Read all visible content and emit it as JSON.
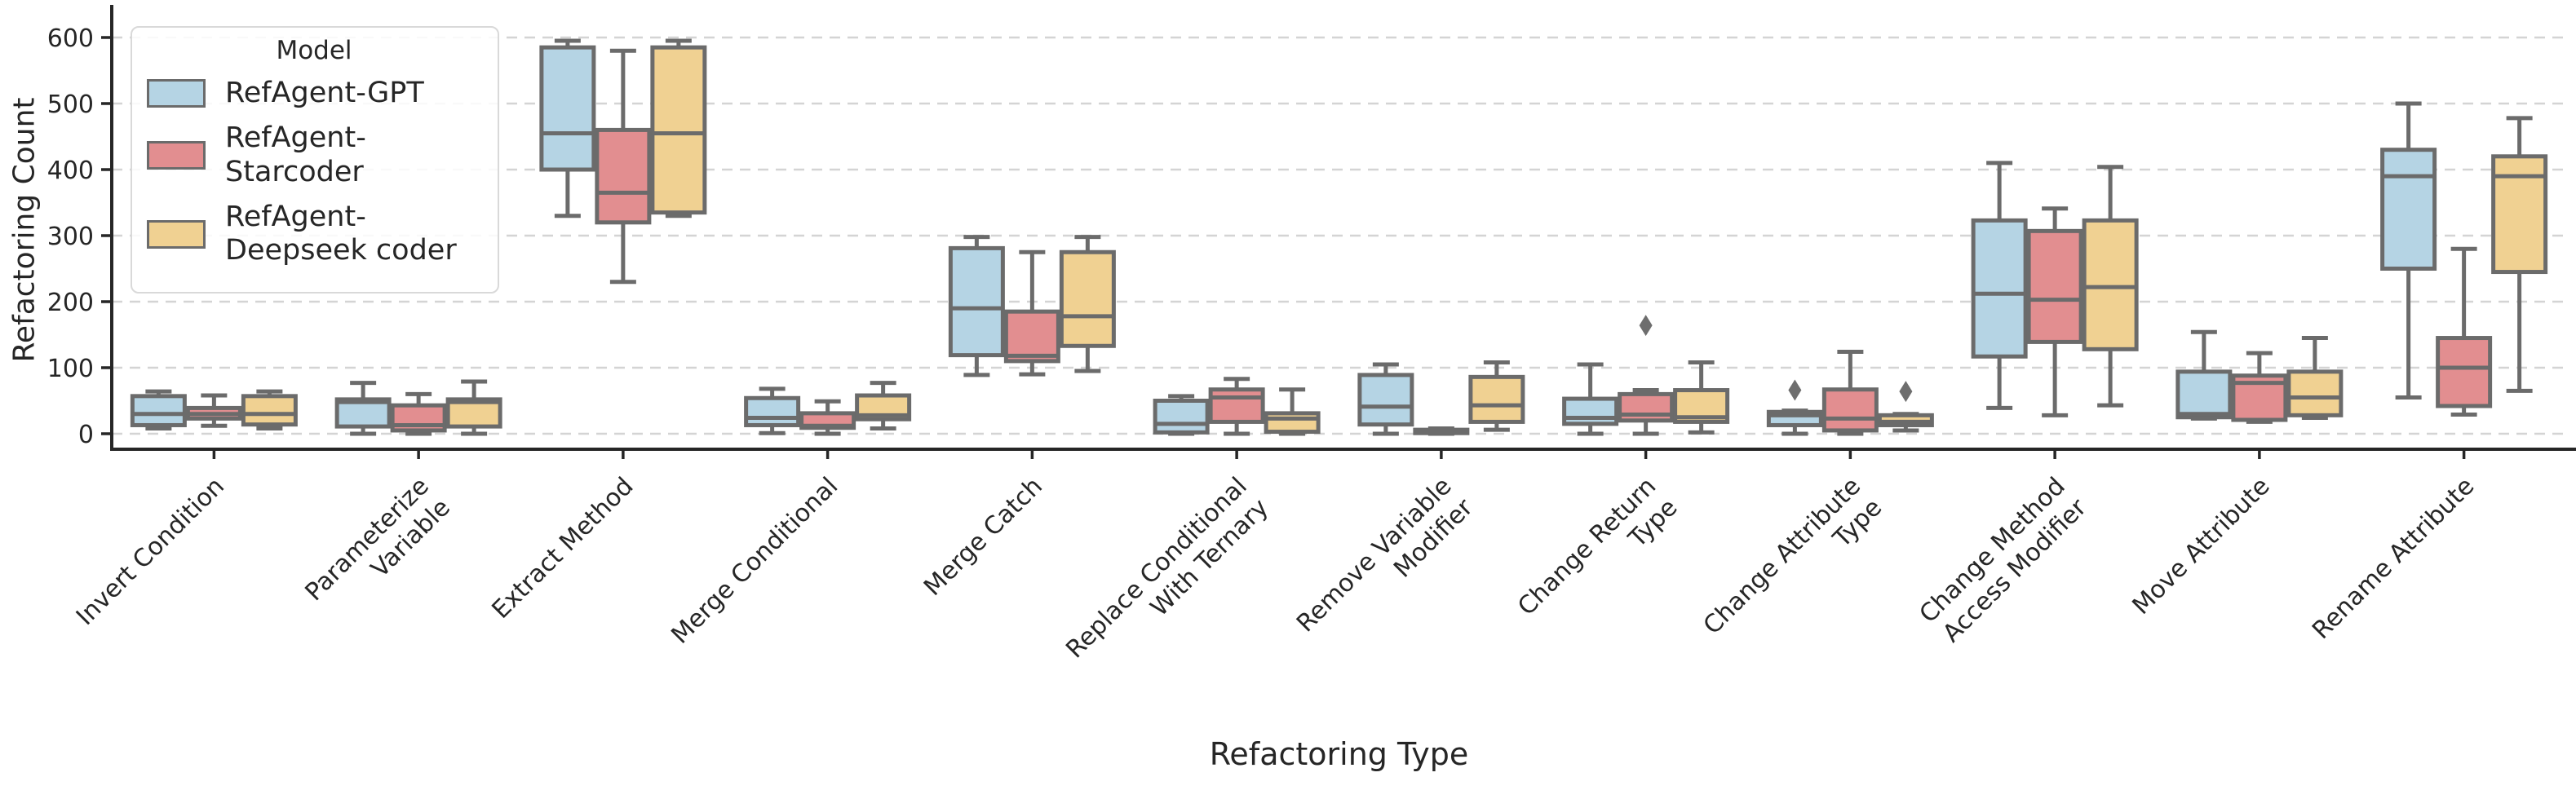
{
  "legend": {
    "title": "Model"
  },
  "chart_data": {
    "type": "boxplot-grouped",
    "xlabel": "Refactoring Type",
    "ylabel": "Refactoring Count",
    "yticks": [
      0,
      100,
      200,
      300,
      400,
      500,
      600
    ],
    "ylim": [
      -25,
      645
    ],
    "grid": "horizontal-dashed",
    "legend_title": "Model",
    "legend_position": "upper-left",
    "series": [
      {
        "name": "RefAgent-GPT",
        "color": "#b5d4e4"
      },
      {
        "name": "RefAgent-Starcoder",
        "color": "#e28e90"
      },
      {
        "name": "RefAgent-Deepseek coder",
        "color": "#f0d192"
      }
    ],
    "categories": [
      "Invert Condition",
      "Parameterize\nVariable",
      "Extract Method",
      "Merge Conditional",
      "Merge Catch",
      "Replace Conditional\nWith Ternary",
      "Remove Variable\nModifier",
      "Change Return\nType",
      "Change Attribute\nType",
      "Change Method\nAccess Modifier",
      "Move Attribute",
      "Rename Attribute"
    ],
    "stats_format": [
      "whisker_low",
      "q1",
      "median",
      "q3",
      "whisker_high",
      "outliers"
    ],
    "stats": [
      [
        [
          8,
          13,
          30,
          57,
          64,
          []
        ],
        [
          12,
          23,
          30,
          39,
          58,
          []
        ],
        [
          8,
          14,
          30,
          57,
          64,
          []
        ]
      ],
      [
        [
          0,
          11,
          48,
          52,
          77,
          []
        ],
        [
          0,
          5,
          13,
          43,
          60,
          []
        ],
        [
          0,
          11,
          48,
          52,
          79,
          []
        ]
      ],
      [
        [
          330,
          400,
          455,
          585,
          595,
          []
        ],
        [
          230,
          320,
          365,
          460,
          580,
          []
        ],
        [
          330,
          335,
          455,
          585,
          595,
          []
        ]
      ],
      [
        [
          1,
          13,
          24,
          54,
          68,
          []
        ],
        [
          0,
          9,
          12,
          31,
          49,
          []
        ],
        [
          8,
          22,
          28,
          58,
          77,
          []
        ]
      ],
      [
        [
          89,
          119,
          190,
          281,
          298,
          []
        ],
        [
          90,
          110,
          118,
          185,
          275,
          []
        ],
        [
          95,
          133,
          178,
          275,
          298,
          []
        ]
      ],
      [
        [
          0,
          2,
          15,
          50,
          57,
          []
        ],
        [
          0,
          18,
          55,
          67,
          83,
          []
        ],
        [
          0,
          3,
          23,
          31,
          67,
          []
        ]
      ],
      [
        [
          0,
          14,
          41,
          89,
          105,
          []
        ],
        [
          0,
          1,
          3,
          6,
          8,
          []
        ],
        [
          6,
          18,
          43,
          86,
          108,
          []
        ]
      ],
      [
        [
          0,
          15,
          24,
          53,
          105,
          []
        ],
        [
          0,
          20,
          29,
          60,
          66,
          [
            164
          ]
        ],
        [
          2,
          18,
          25,
          66,
          108,
          []
        ]
      ],
      [
        [
          0,
          13,
          28,
          33,
          35,
          [
            66
          ]
        ],
        [
          0,
          5,
          23,
          67,
          124,
          []
        ],
        [
          5,
          13,
          18,
          28,
          30,
          [
            64
          ]
        ]
      ],
      [
        [
          39,
          117,
          212,
          323,
          410,
          []
        ],
        [
          28,
          139,
          203,
          307,
          341,
          []
        ],
        [
          43,
          128,
          222,
          323,
          404,
          []
        ]
      ],
      [
        [
          23,
          25,
          30,
          94,
          154,
          []
        ],
        [
          18,
          21,
          77,
          88,
          122,
          []
        ],
        [
          24,
          28,
          55,
          94,
          145,
          []
        ]
      ],
      [
        [
          55,
          250,
          390,
          430,
          500,
          []
        ],
        [
          29,
          42,
          100,
          145,
          280,
          []
        ],
        [
          65,
          245,
          390,
          420,
          478,
          []
        ]
      ]
    ],
    "colors": {
      "box_edge": "#6b6b6b",
      "median": "#6b6b6b",
      "whisker": "#6b6b6b",
      "outlier": "#6e6e6e",
      "spine": "#262626",
      "grid": "#d4d4d4",
      "text": "#262626"
    }
  }
}
